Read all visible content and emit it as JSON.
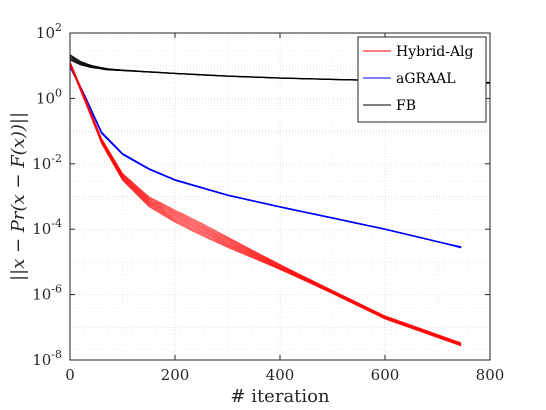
{
  "chart_data": {
    "type": "line",
    "title": "",
    "xlabel": "# iteration",
    "ylabel": "||x − Pr(x − F(x))||",
    "xlim": [
      0,
      800
    ],
    "ylim": [
      1e-08,
      100
    ],
    "yscale": "log",
    "x_ticks": [
      "0",
      "200",
      "400",
      "600",
      "800"
    ],
    "y_ticks": [
      {
        "base": "10",
        "exp": "2",
        "value": 100
      },
      {
        "base": "10",
        "exp": "0",
        "value": 1
      },
      {
        "base": "10",
        "exp": "-2",
        "value": 0.01
      },
      {
        "base": "10",
        "exp": "-4",
        "value": 0.0001
      },
      {
        "base": "10",
        "exp": "-6",
        "value": 1e-06
      },
      {
        "base": "10",
        "exp": "-8",
        "value": 1e-08
      }
    ],
    "grid": true,
    "legend_position": "top-right",
    "legend": [
      "Hybrid-Alg",
      "aGRAAL",
      "FB"
    ],
    "series": [
      {
        "name": "Hybrid-Alg",
        "color": "#ff0000",
        "runs": 12,
        "x": [
          0,
          30,
          60,
          100,
          150,
          200,
          300,
          400,
          500,
          600,
          745
        ],
        "y": [
          12,
          0.8,
          0.05,
          0.004,
          0.0007,
          0.00025,
          4e-05,
          7e-06,
          1.2e-06,
          2e-07,
          3e-08
        ]
      },
      {
        "name": "aGRAAL",
        "color": "#0000ff",
        "runs": 10,
        "x": [
          0,
          30,
          60,
          100,
          150,
          200,
          300,
          400,
          500,
          600,
          745
        ],
        "y": [
          10,
          1.0,
          0.09,
          0.02,
          0.007,
          0.0032,
          0.0011,
          0.00048,
          0.00022,
          0.0001,
          2.8e-05
        ]
      },
      {
        "name": "FB",
        "color": "#000000",
        "runs": 5,
        "x": [
          0,
          20,
          40,
          70,
          100,
          200,
          300,
          400,
          500,
          600,
          700,
          800
        ],
        "y": [
          18,
          12,
          9.5,
          7.8,
          7.2,
          5.8,
          4.8,
          4.2,
          3.8,
          3.5,
          3.2,
          3.0
        ]
      }
    ]
  }
}
